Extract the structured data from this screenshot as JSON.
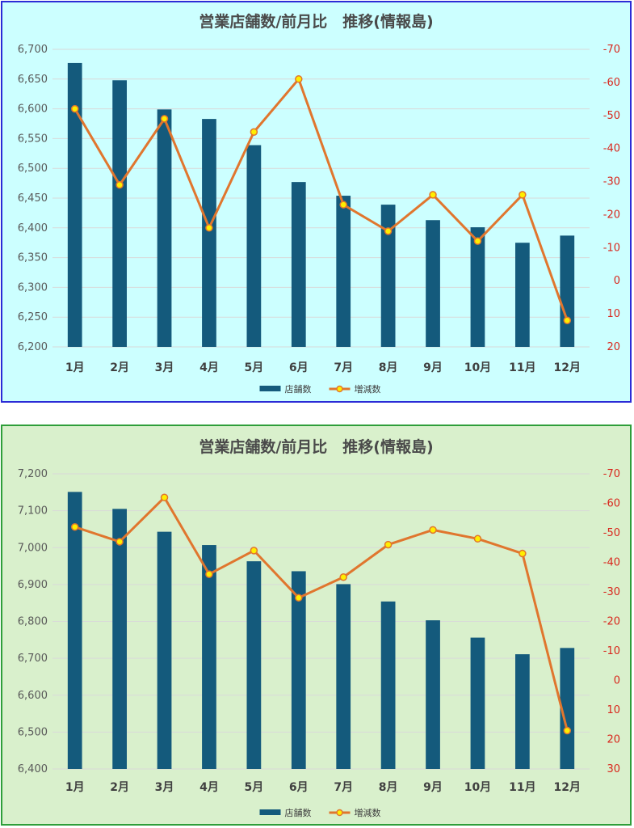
{
  "chart_data": [
    {
      "type": "bar+line",
      "title": "営業店舗数/前月比　推移(情報島)",
      "background": "#ccffff",
      "border_color": "#2b2bd6",
      "bar_color": "#145a7c",
      "line_color": "#e0762e",
      "marker_color": "#ffee00",
      "categories": [
        "1月",
        "2月",
        "3月",
        "4月",
        "5月",
        "6月",
        "7月",
        "8月",
        "9月",
        "10月",
        "11月",
        "12月"
      ],
      "series": [
        {
          "name": "店舗数",
          "type": "bar",
          "axis": "left",
          "values": [
            6677,
            6648,
            6599,
            6583,
            6539,
            6477,
            6454,
            6439,
            6413,
            6401,
            6375,
            6387
          ]
        },
        {
          "name": "増減数",
          "type": "line",
          "axis": "right",
          "values": [
            -52,
            -29,
            -49,
            -16,
            -45,
            -61,
            -23,
            -15,
            -26,
            -12,
            -26,
            12
          ]
        }
      ],
      "y_left": {
        "min": 6200,
        "max": 6700,
        "ticks": [
          "6,200",
          "6,250",
          "6,300",
          "6,350",
          "6,400",
          "6,450",
          "6,500",
          "6,550",
          "6,600",
          "6,650",
          "6,700"
        ]
      },
      "y_right": {
        "min": -70,
        "max": 20,
        "reversed": true,
        "ticks": [
          "-70",
          "-60",
          "-50",
          "-40",
          "-30",
          "-20",
          "-10",
          "0",
          "10",
          "20"
        ]
      },
      "grid": true,
      "legend": "bottom"
    },
    {
      "type": "bar+line",
      "title": "営業店舗数/前月比　推移(情報島)",
      "background": "#d9f0cc",
      "border_color": "#2e9e3a",
      "bar_color": "#145a7c",
      "line_color": "#e0762e",
      "marker_color": "#ffee00",
      "categories": [
        "1月",
        "2月",
        "3月",
        "4月",
        "5月",
        "6月",
        "7月",
        "8月",
        "9月",
        "10月",
        "11月",
        "12月"
      ],
      "series": [
        {
          "name": "店舗数",
          "type": "bar",
          "axis": "left",
          "values": [
            7151,
            7105,
            7043,
            7007,
            6963,
            6936,
            6901,
            6854,
            6803,
            6756,
            6711,
            6728
          ]
        },
        {
          "name": "増減数",
          "type": "line",
          "axis": "right",
          "values": [
            -52,
            -47,
            -62,
            -36,
            -44,
            -28,
            -35,
            -46,
            -51,
            -48,
            -43,
            17
          ]
        }
      ],
      "y_left": {
        "min": 6400,
        "max": 7200,
        "ticks": [
          "6,400",
          "6,500",
          "6,600",
          "6,700",
          "6,800",
          "6,900",
          "7,000",
          "7,100",
          "7,200"
        ]
      },
      "y_right": {
        "min": -70,
        "max": 30,
        "reversed": true,
        "ticks": [
          "-70",
          "-60",
          "-50",
          "-40",
          "-30",
          "-20",
          "-10",
          "0",
          "10",
          "20",
          "30"
        ]
      },
      "grid": true,
      "legend": "bottom"
    }
  ]
}
